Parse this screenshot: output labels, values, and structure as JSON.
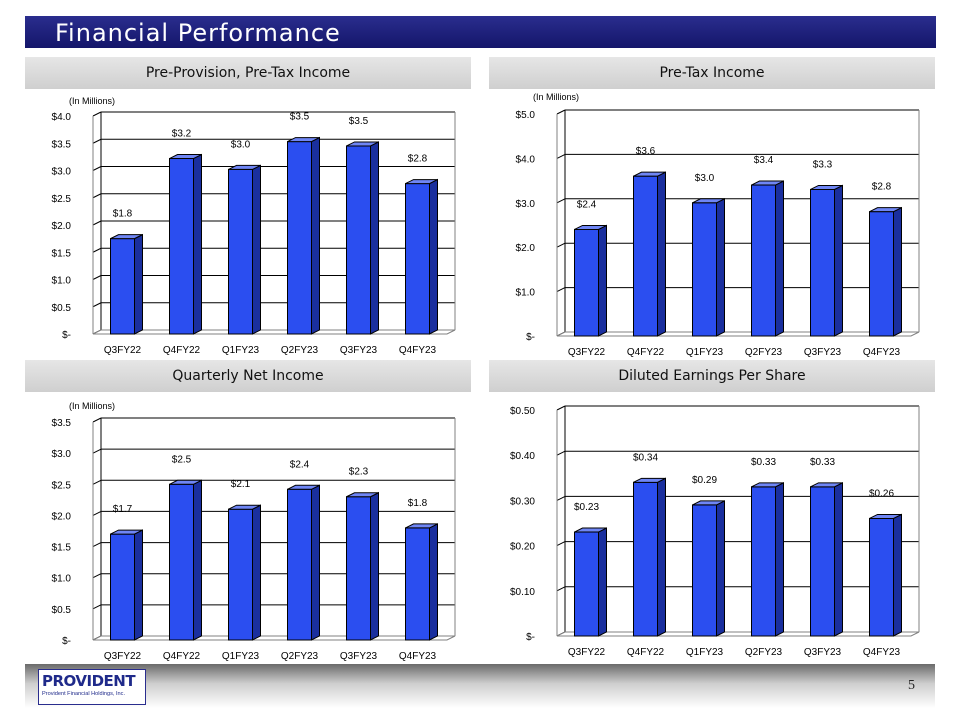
{
  "slide": {
    "title": "Financial Performance",
    "page_number": "5",
    "logo_name": "PROVIDENT",
    "logo_tagline": "Provident Financial Holdings, Inc."
  },
  "colors": {
    "bar_front": "#2b4ef0",
    "bar_side": "#1a2f9e",
    "bar_top": "#6f86f5",
    "grid": "#000000",
    "title_bar": "#1e2080"
  },
  "chart_data": [
    {
      "type": "bar",
      "title": "Pre-Provision, Pre-Tax Income",
      "unit_label": "(In Millions)",
      "categories": [
        "Q3FY22",
        "Q4FY22",
        "Q1FY23",
        "Q2FY23",
        "Q3FY23",
        "Q4FY23"
      ],
      "values": [
        1.75,
        3.22,
        3.02,
        3.53,
        3.45,
        2.76
      ],
      "data_labels": [
        "$1.8",
        "$3.2",
        "$3.0",
        "$3.5",
        "$3.5",
        "$2.8"
      ],
      "ylim": [
        0,
        4.0
      ],
      "yticks": [
        0,
        0.5,
        1.0,
        1.5,
        2.0,
        2.5,
        3.0,
        3.5,
        4.0
      ],
      "ytick_labels": [
        "$-",
        "$0.5",
        "$1.0",
        "$1.5",
        "$2.0",
        "$2.5",
        "$3.0",
        "$3.5",
        "$4.0"
      ],
      "xlabel": "",
      "ylabel": ""
    },
    {
      "type": "bar",
      "title": "Pre-Tax Income",
      "unit_label": "(In Millions)",
      "categories": [
        "Q3FY22",
        "Q4FY22",
        "Q1FY23",
        "Q2FY23",
        "Q3FY23",
        "Q4FY23"
      ],
      "values": [
        2.4,
        3.6,
        3.0,
        3.4,
        3.3,
        2.8
      ],
      "data_labels": [
        "$2.4",
        "$3.6",
        "$3.0",
        "$3.4",
        "$3.3",
        "$2.8"
      ],
      "ylim": [
        0,
        5.0
      ],
      "yticks": [
        0,
        1.0,
        2.0,
        3.0,
        4.0,
        5.0
      ],
      "ytick_labels": [
        "$-",
        "$1.0",
        "$2.0",
        "$3.0",
        "$4.0",
        "$5.0"
      ],
      "xlabel": "",
      "ylabel": ""
    },
    {
      "type": "bar",
      "title": "Quarterly Net Income",
      "unit_label": "(In Millions)",
      "categories": [
        "Q3FY22",
        "Q4FY22",
        "Q1FY23",
        "Q2FY23",
        "Q3FY23",
        "Q4FY23"
      ],
      "values": [
        1.7,
        2.5,
        2.1,
        2.42,
        2.3,
        1.8
      ],
      "data_labels": [
        "$1.7",
        "$2.5",
        "$2.1",
        "$2.4",
        "$2.3",
        "$1.8"
      ],
      "ylim": [
        0,
        3.5
      ],
      "yticks": [
        0,
        0.5,
        1.0,
        1.5,
        2.0,
        2.5,
        3.0,
        3.5
      ],
      "ytick_labels": [
        "$-",
        "$0.5",
        "$1.0",
        "$1.5",
        "$2.0",
        "$2.5",
        "$3.0",
        "$3.5"
      ],
      "xlabel": "",
      "ylabel": ""
    },
    {
      "type": "bar",
      "title": "Diluted Earnings Per Share",
      "unit_label": "",
      "categories": [
        "Q3FY22",
        "Q4FY22",
        "Q1FY23",
        "Q2FY23",
        "Q3FY23",
        "Q4FY23"
      ],
      "values": [
        0.23,
        0.34,
        0.29,
        0.33,
        0.33,
        0.26
      ],
      "data_labels": [
        "$0.23",
        "$0.34",
        "$0.29",
        "$0.33",
        "$0.33",
        "$0.26"
      ],
      "ylim": [
        0,
        0.5
      ],
      "yticks": [
        0,
        0.1,
        0.2,
        0.3,
        0.4,
        0.5
      ],
      "ytick_labels": [
        "$-",
        "$0.10",
        "$0.20",
        "$0.30",
        "$0.40",
        "$0.50"
      ],
      "xlabel": "",
      "ylabel": ""
    }
  ]
}
